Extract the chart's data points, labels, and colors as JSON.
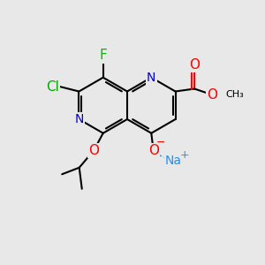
{
  "bg_color": "#e8e8e8",
  "bond_color": "#000000",
  "bond_width": 1.5,
  "atom_colors": {
    "C": "#000000",
    "N": "#0000cd",
    "O": "#ff0000",
    "F": "#00bb00",
    "Cl": "#00aa00",
    "Na": "#1e90ff"
  },
  "font_size": 10,
  "title": ""
}
